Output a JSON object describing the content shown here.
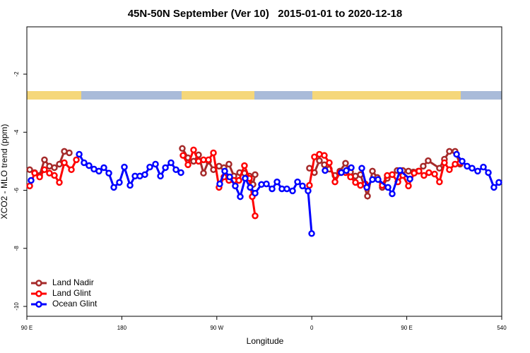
{
  "chart_data": {
    "type": "line",
    "title": "45N-50N September (Ver 10)   2015-01-01 to 2020-12-18",
    "x_label": "Longitude",
    "y_label": "XCO2 - MLO trend (ppm)",
    "xlim": [
      90,
      540
    ],
    "ylim": [
      -10.34,
      -0.37
    ],
    "xticks": [
      {
        "value": 90,
        "label": "90 E"
      },
      180,
      {
        "value": 270,
        "label": "90 W"
      },
      {
        "value": 360,
        "label": "0"
      },
      {
        "value": 450,
        "label": "90 E"
      },
      540
    ],
    "yticks": [
      -2,
      -4,
      -6,
      -8,
      -10
    ],
    "legend": "lower left",
    "series": [
      {
        "name": "Land Nadir",
        "color": "#a52a2a",
        "x": [
          92.7,
          97.4,
          102.1,
          106.7,
          111.4,
          116.1,
          120.8,
          125.5,
          130.2,
          null,
          237.3,
          242.7,
          248,
          252.7,
          257.4,
          262.1,
          266.8,
          272.1,
          276.8,
          281.5,
          286.2,
          291.6,
          296.2,
          300.9,
          304.3,
          306.3,
          null,
          357.8,
          362.5,
          367.2,
          371.9,
          376.6,
          382,
          386.6,
          392,
          396.7,
          401.4,
          406.1,
          412.8,
          417.5,
          422.1,
          426.8,
          431.5,
          436.2,
          440.9,
          446.3,
          451.6,
          456.3,
          461,
          465.6,
          470.3,
          481,
          485.7,
          490.4,
          495.8,
          500.5
        ],
        "values": [
          -5.29,
          -5.39,
          -5.49,
          -4.95,
          -5.17,
          -5.22,
          -5.1,
          -4.66,
          -4.71,
          null,
          -4.56,
          -4.88,
          -5.0,
          -4.78,
          -5.41,
          -5.0,
          -5.29,
          -5.17,
          -5.22,
          -5.1,
          -5.51,
          -5.39,
          -5.41,
          -5.51,
          -5.8,
          -5.46,
          null,
          -5.24,
          -5.39,
          -4.98,
          -5.12,
          -5.27,
          -5.49,
          -5.34,
          -5.07,
          -5.37,
          -5.51,
          -5.46,
          -6.2,
          -5.34,
          -5.56,
          -5.9,
          -5.59,
          -5.46,
          -5.32,
          -5.32,
          -5.34,
          -5.37,
          -5.34,
          -5.17,
          -4.98,
          -5.24,
          -4.93,
          -4.66,
          -4.66,
          -5.1
        ]
      },
      {
        "name": "Land Glint",
        "color": "#ff0000",
        "x": [
          92.7,
          97.4,
          102.1,
          106.7,
          111.4,
          116.1,
          120.8,
          125.5,
          132.2,
          136.9,
          null,
          238,
          242.7,
          248,
          252.7,
          257.4,
          262.1,
          266.8,
          272.1,
          276.8,
          281.5,
          286.2,
          290.9,
          296.2,
          300.9,
          303.6,
          306.3,
          null,
          357.8,
          362.5,
          367.2,
          371.9,
          376.6,
          382,
          386.6,
          392,
          396.7,
          401.4,
          406.1,
          410.7,
          null,
          426.8,
          431.5,
          436.2,
          441.6,
          446.3,
          451.6,
          457,
          461.6,
          466.3,
          471,
          476.4,
          481,
          485.7,
          490.4,
          495.8,
          500.5
        ],
        "values": [
          -5.85,
          -5.41,
          -5.54,
          -5.29,
          -5.41,
          -5.49,
          -5.73,
          -5.05,
          -5.29,
          -4.95,
          null,
          -4.8,
          -5.12,
          -4.61,
          -5.0,
          -4.95,
          -4.95,
          -4.71,
          -5.9,
          -5.54,
          -5.66,
          -5.66,
          -5.66,
          -5.15,
          -5.59,
          -6.22,
          -6.88,
          null,
          -5.83,
          -4.85,
          -4.76,
          -4.8,
          -5.05,
          -5.71,
          -5.39,
          -5.39,
          -5.54,
          -5.73,
          -5.83,
          -5.78,
          null,
          -5.83,
          -5.49,
          -5.46,
          -5.71,
          -5.49,
          -5.85,
          -5.41,
          -5.34,
          -5.49,
          -5.39,
          -5.44,
          -5.71,
          -5.05,
          -5.29,
          -5.1,
          -5.05
        ]
      },
      {
        "name": "Ocean Glint",
        "color": "#0000ff",
        "x": [
          94,
          null,
          139.6,
          144.2,
          148.9,
          153.6,
          158.3,
          163,
          167.7,
          172.4,
          177.7,
          182.4,
          187.8,
          192.5,
          197.1,
          201.8,
          206.5,
          211.9,
          216.6,
          221.3,
          226.6,
          231.3,
          236,
          null,
          272.8,
          277.5,
          282.2,
          287.5,
          292.2,
          296.9,
          301.6,
          306.3,
          312.3,
          317,
          322.4,
          327.1,
          331.7,
          336.4,
          341.8,
          346.5,
          351.2,
          356.5,
          359.9,
          null,
          372.6,
          null,
          388,
          392.7,
          397.4,
          null,
          407.4,
          412.1,
          417.5,
          null,
          422.8,
          432.2,
          436.2,
          443.6,
          453,
          null,
          497.2,
          502.5,
          507.2,
          511.9,
          517.2,
          522.6,
          527.3,
          532.6,
          537.3
        ],
        "values": [
          -5.66,
          null,
          -4.76,
          -5.05,
          -5.15,
          -5.27,
          -5.34,
          -5.22,
          -5.41,
          -5.9,
          -5.73,
          -5.2,
          -5.83,
          -5.51,
          -5.51,
          -5.46,
          -5.2,
          -5.1,
          -5.51,
          -5.22,
          -5.05,
          -5.29,
          -5.39,
          null,
          -5.78,
          -5.34,
          -5.54,
          -5.85,
          -6.22,
          -5.59,
          -5.9,
          -6.1,
          -5.8,
          -5.78,
          -5.95,
          -5.71,
          -5.95,
          -5.95,
          -6.02,
          -5.71,
          -5.85,
          -6.02,
          -7.49,
          null,
          -5.32,
          null,
          -5.39,
          -5.32,
          -5.22,
          null,
          -5.24,
          -5.9,
          -5.63,
          null,
          -5.63,
          -5.9,
          -6.12,
          -5.32,
          -5.61,
          null,
          -4.76,
          -5.0,
          -5.17,
          -5.24,
          -5.34,
          -5.2,
          -5.39,
          -5.9,
          -5.73
        ]
      }
    ]
  }
}
